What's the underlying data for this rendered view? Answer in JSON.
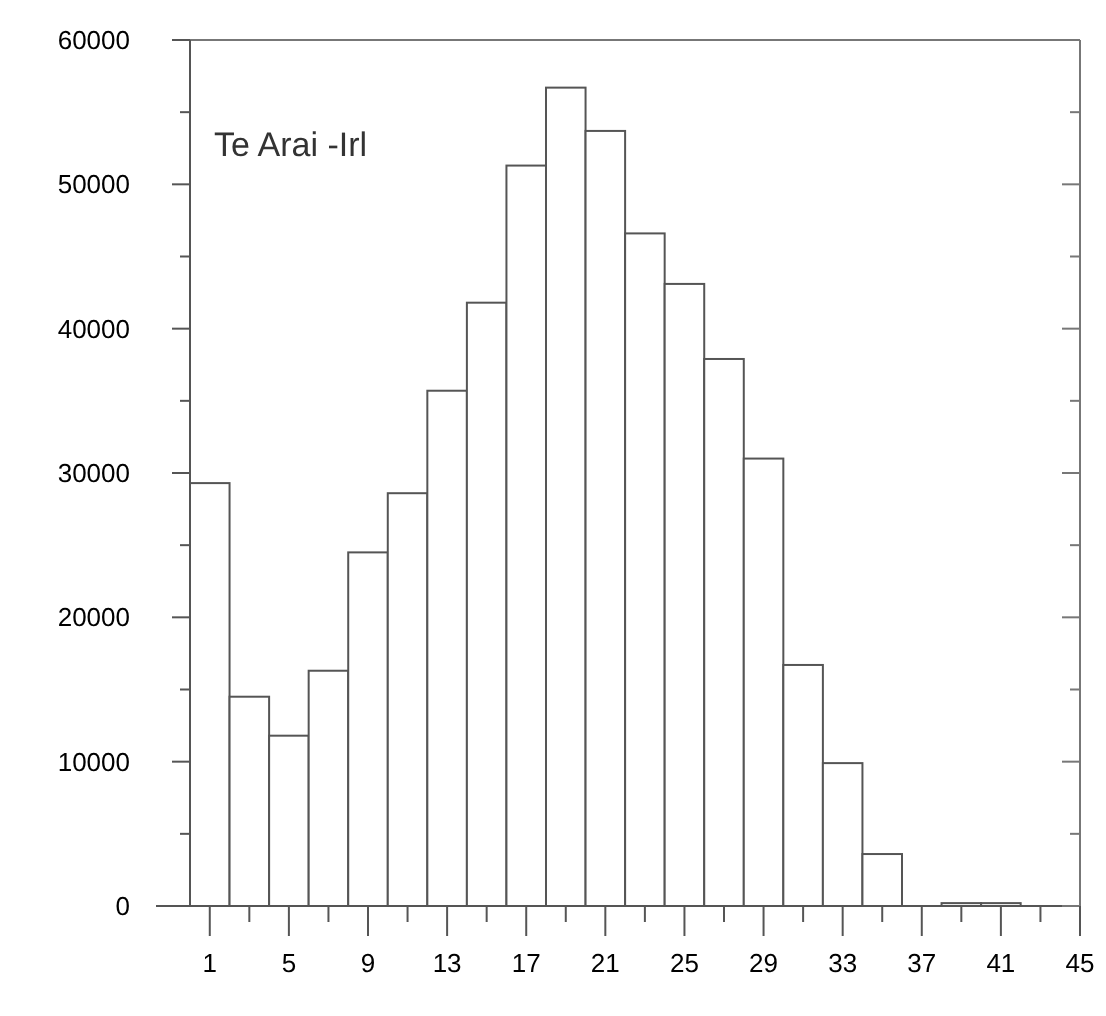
{
  "chart_data": {
    "type": "histogram",
    "annotations": [
      "Te Arai -Irl"
    ],
    "bins": [
      0,
      2,
      4,
      6,
      8,
      10,
      12,
      14,
      16,
      18,
      20,
      22,
      24,
      26,
      28,
      30,
      32,
      34,
      36,
      38,
      40,
      42
    ],
    "values": [
      29300,
      14500,
      11800,
      16300,
      24500,
      28600,
      35700,
      41800,
      51300,
      56700,
      53700,
      46600,
      43100,
      37900,
      31000,
      16700,
      9900,
      3600,
      0,
      200,
      200
    ],
    "color": "#ffffff",
    "xlim": [
      0,
      45
    ],
    "xticks": [
      1,
      {
        "value": 3,
        "label": null
      },
      5,
      {
        "value": 7,
        "label": null
      },
      9,
      {
        "value": 11,
        "label": null
      },
      13,
      {
        "value": 15,
        "label": null
      },
      17,
      {
        "value": 19,
        "label": null
      },
      21,
      {
        "value": 23,
        "label": null
      },
      25,
      {
        "value": 27,
        "label": null
      },
      29,
      {
        "value": 31,
        "label": null
      },
      33,
      {
        "value": 35,
        "label": null
      },
      37,
      {
        "value": 39,
        "label": null
      },
      41,
      {
        "value": 43,
        "label": null
      },
      45
    ],
    "ylim": [
      0,
      60000
    ],
    "yticks": [
      0,
      {
        "value": 5000,
        "label": null
      },
      10000,
      {
        "value": 15000,
        "label": null
      },
      20000,
      {
        "value": 25000,
        "label": null
      },
      30000,
      {
        "value": 35000,
        "label": null
      },
      40000,
      {
        "value": 45000,
        "label": null
      },
      50000,
      {
        "value": 55000,
        "label": null
      },
      60000
    ],
    "grid": false
  }
}
